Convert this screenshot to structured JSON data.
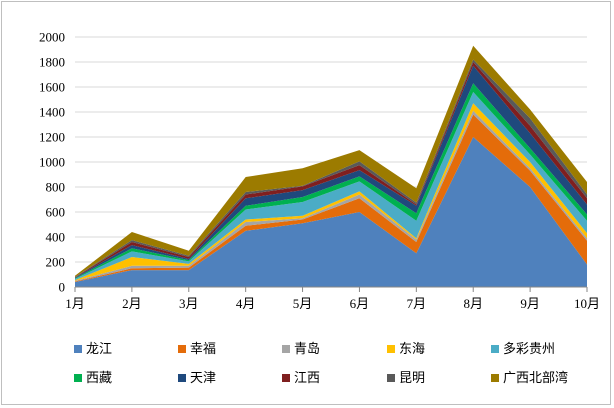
{
  "chart_data": {
    "type": "area",
    "stacked": true,
    "title": "",
    "xlabel": "",
    "ylabel": "",
    "categories": [
      "1月",
      "2月",
      "3月",
      "4月",
      "5月",
      "6月",
      "7月",
      "8月",
      "9月",
      "10月"
    ],
    "ylim": [
      0,
      2000
    ],
    "yticks": [
      "0",
      "200",
      "400",
      "600",
      "800",
      "1000",
      "1200",
      "1400",
      "1600",
      "1800",
      "2000"
    ],
    "grid": "horizontal",
    "legend_position": "bottom",
    "series": [
      {
        "name": "龙江",
        "color": "#4f81bd",
        "values": [
          40,
          135,
          135,
          450,
          510,
          600,
          270,
          1200,
          800,
          180
        ]
      },
      {
        "name": "幸福",
        "color": "#e46c0a",
        "values": [
          5,
          15,
          20,
          40,
          30,
          110,
          90,
          180,
          130,
          190
        ]
      },
      {
        "name": "青岛",
        "color": "#a5a5a5",
        "values": [
          5,
          20,
          15,
          30,
          10,
          30,
          20,
          30,
          20,
          20
        ]
      },
      {
        "name": "东海",
        "color": "#ffc000",
        "values": [
          5,
          70,
          15,
          20,
          20,
          25,
          10,
          60,
          50,
          40
        ]
      },
      {
        "name": "多彩贵州",
        "color": "#4bacc6",
        "values": [
          10,
          45,
          20,
          80,
          110,
          80,
          140,
          90,
          60,
          100
        ]
      },
      {
        "name": "西藏",
        "color": "#00b050",
        "values": [
          5,
          25,
          10,
          30,
          40,
          40,
          60,
          70,
          50,
          50
        ]
      },
      {
        "name": "天津",
        "color": "#1f497d",
        "values": [
          5,
          25,
          10,
          60,
          55,
          50,
          60,
          140,
          120,
          80
        ]
      },
      {
        "name": "江西",
        "color": "#7f1f1f",
        "values": [
          3,
          25,
          15,
          30,
          30,
          40,
          10,
          30,
          60,
          50
        ]
      },
      {
        "name": "昆明",
        "color": "#595959",
        "values": [
          2,
          15,
          10,
          20,
          5,
          30,
          15,
          20,
          60,
          30
        ]
      },
      {
        "name": "广西北部湾",
        "color": "#9c7b00",
        "values": [
          10,
          65,
          40,
          120,
          140,
          90,
          115,
          110,
          70,
          100
        ]
      }
    ]
  }
}
